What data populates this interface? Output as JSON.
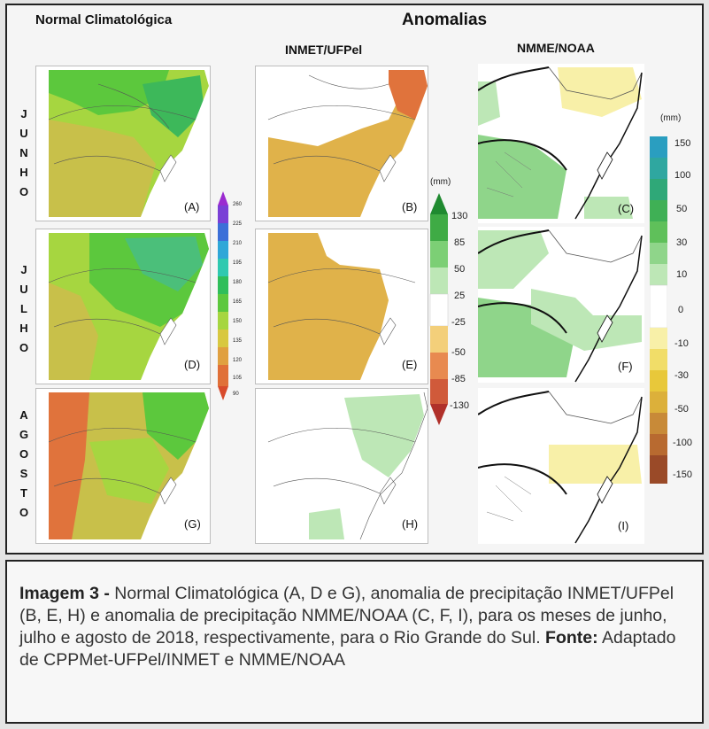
{
  "headers": {
    "normal": "Normal Climatológica",
    "anomalias": "Anomalias",
    "inmet": "INMET/UFPel",
    "nmme": "NMME/NOAA"
  },
  "months": {
    "junho": [
      "J",
      "U",
      "N",
      "H",
      "O"
    ],
    "julho": [
      "J",
      "U",
      "L",
      "H",
      "O"
    ],
    "agosto": [
      "A",
      "G",
      "O",
      "S",
      "T",
      "O"
    ]
  },
  "panels": [
    "(A)",
    "(B)",
    "(C)",
    "(D)",
    "(E)",
    "(F)",
    "(G)",
    "(H)",
    "(I)"
  ],
  "colorbar_normal": {
    "ticks": [
      "260",
      "225",
      "210",
      "195",
      "180",
      "165",
      "150",
      "135",
      "120",
      "105",
      "90"
    ]
  },
  "colorbar_inmet": {
    "unit": "(mm)",
    "ticks": [
      "130",
      "85",
      "50",
      "25",
      "-25",
      "-50",
      "-85",
      "-130"
    ]
  },
  "colorbar_nmme": {
    "unit": "(mm)",
    "ticks": [
      "150",
      "100",
      "50",
      "30",
      "10",
      "0",
      "-10",
      "-30",
      "-50",
      "-100",
      "-150"
    ]
  },
  "colors": {
    "green": "#5cc83d",
    "yellowgreen": "#a6d640",
    "ochre": "#e0b24a",
    "orange": "#e0733c",
    "lightgreen": "#bde7b6",
    "paleyellow": "#f8f0a8"
  },
  "caption": {
    "label": "Imagem 3 -",
    "text": " Normal Climatológica (A, D e G), anomalia de precipitação INMET/UFPel (B, E, H) e anomalia de precipitação NMME/NOAA (C, F, I), para os meses de junho, julho e agosto de 2018, respectivamente, para o Rio Grande do Sul. ",
    "source_label": "Fonte:",
    "source_text": " Adaptado de CPPMet-UFPel/INMET e NMME/NOAA"
  }
}
